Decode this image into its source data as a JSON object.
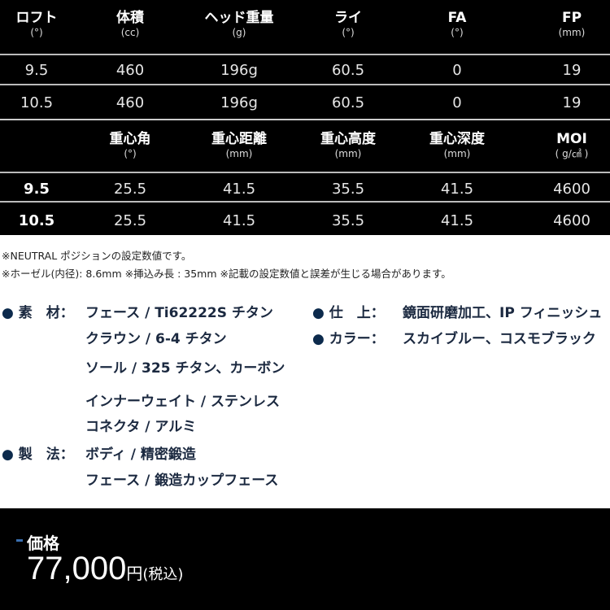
{
  "table1": {
    "headers": [
      {
        "t": "ロフト",
        "u": "(°)"
      },
      {
        "t": "体積",
        "u": "(cc)"
      },
      {
        "t": "ヘッド重量",
        "u": "(g)"
      },
      {
        "t": "ライ",
        "u": "(°)"
      },
      {
        "t": "FA",
        "u": "(°)"
      },
      {
        "t": "FP",
        "u": "(mm)"
      }
    ],
    "rows": [
      [
        "9.5",
        "460",
        "196g",
        "60.5",
        "0",
        "19"
      ],
      [
        "10.5",
        "460",
        "196g",
        "60.5",
        "0",
        "19"
      ]
    ]
  },
  "table2": {
    "headers": [
      {
        "t": "",
        "u": ""
      },
      {
        "t": "重心角",
        "u": "(°)"
      },
      {
        "t": "重心距離",
        "u": "(mm)"
      },
      {
        "t": "重心高度",
        "u": "(mm)"
      },
      {
        "t": "重心深度",
        "u": "(mm)"
      },
      {
        "t": "MOI",
        "u": "( g/㎠ )"
      }
    ],
    "rows": [
      [
        "9.5",
        "25.5",
        "41.5",
        "35.5",
        "41.5",
        "4600"
      ],
      [
        "10.5",
        "25.5",
        "41.5",
        "35.5",
        "41.5",
        "4600"
      ]
    ]
  },
  "notes": [
    "※NEUTRAL ポジションの設定数値です。",
    "※ホーゼル(内径): 8.6mm ※挿込み長 : 35mm ※記載の設定数値と誤差が生じる場合があります。"
  ],
  "specs": {
    "bullet": "●",
    "material_label": "素　材：",
    "material": [
      "フェース / Ti62222S チタン",
      "クラウン / 6-4 チタン",
      "ソール / 325 チタン、カーボン",
      "インナーウェイト / ステンレス",
      "コネクタ / アルミ"
    ],
    "method_label": "製　法：",
    "method": [
      "ボディ / 精密鍛造",
      "フェース / 鍛造カップフェース"
    ],
    "finish_label": "仕　上：",
    "finish": "鏡面研磨加工、IP フィニッシュ",
    "color_label": "カラー：",
    "color": "スカイブルー、コスモブラック"
  },
  "price": {
    "label": "価格",
    "amount": "77,000",
    "unit": "円",
    "tax": "(税込)",
    "accent": "#3a6fb0"
  }
}
